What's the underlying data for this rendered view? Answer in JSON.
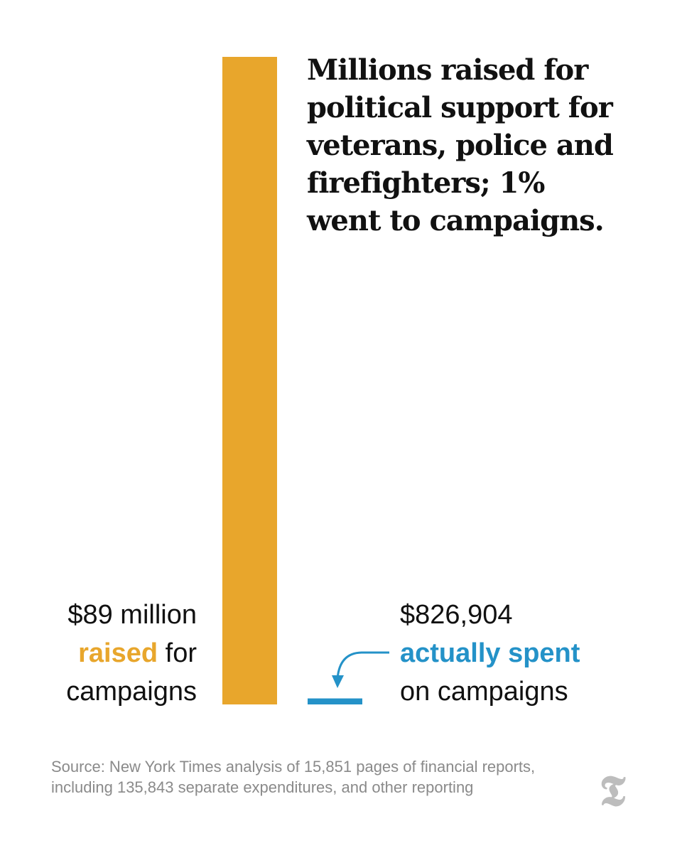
{
  "chart_data": {
    "type": "bar",
    "title": "Millions raised for political support for veterans, police and firefighters; 1% went to campaigns.",
    "categories": [
      "raised",
      "actually spent"
    ],
    "values": [
      89000000,
      826904
    ],
    "colors": [
      "#e8a62c",
      "#2492c8"
    ],
    "annotations": {
      "raised": {
        "amount": "$89 million",
        "highlight": "raised",
        "rest": "for",
        "line3": "campaigns"
      },
      "spent": {
        "amount": "$826,904",
        "highlight": "actually spent",
        "line3": "on campaigns"
      }
    }
  },
  "source": "Source: New York Times analysis of 15,851 pages of financial reports, including 135,843 separate expenditures, and other reporting",
  "logo": {
    "icon": "nyt-t-logo-icon",
    "glyph": "𝕿"
  },
  "colors": {
    "accent_raised": "#e8a62c",
    "accent_spent": "#2492c8",
    "source_text": "#8a8a8a"
  }
}
